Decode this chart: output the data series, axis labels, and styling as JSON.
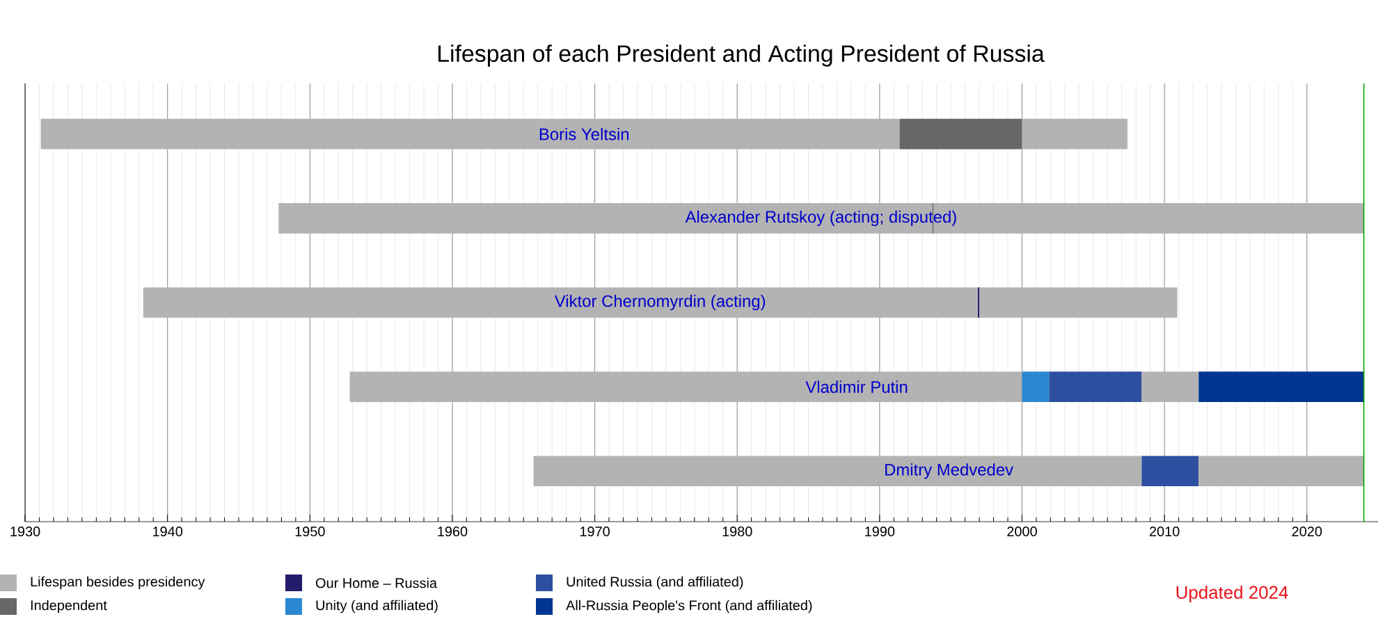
{
  "chart_data": {
    "type": "bar",
    "orientation": "horizontal",
    "title": "Lifespan of each President and Acting President of Russia",
    "categories": [
      "Boris Yeltsin",
      "Alexander Rutskoy (acting; disputed)",
      "Viktor Chernomyrdin (acting)",
      "Vladimir Putin",
      "Dmitry Medvedev"
    ],
    "series": [
      {
        "name": "Lifespan besides presidency",
        "color": "#b3b3b3",
        "base": [
          1931.1,
          1947.8,
          1938.3,
          1952.8,
          1965.7
        ],
        "values": [
          60.3,
          45.9,
          58.6,
          47.2,
          42.7
        ]
      },
      {
        "name": "Independent",
        "color": "#676767",
        "base": [
          1991.4,
          1993.7,
          null,
          null,
          null
        ],
        "values": [
          8.6,
          0.1,
          null,
          null,
          null
        ]
      },
      {
        "name": "Our Home – Russia",
        "color": "#231b6b",
        "base": [
          null,
          null,
          1996.9,
          null,
          null
        ],
        "values": [
          null,
          null,
          0.1,
          null,
          null
        ]
      },
      {
        "name": "Unity (and affiliated)",
        "color": "#2a88d3",
        "base": [
          null,
          null,
          null,
          2000.0,
          null
        ],
        "values": [
          null,
          null,
          null,
          1.9,
          null
        ]
      },
      {
        "name": "United Russia (and affiliated)",
        "color": "#2e4f9f",
        "base": [
          null,
          null,
          null,
          2001.9,
          2008.4
        ],
        "values": [
          null,
          null,
          null,
          6.5,
          4.0
        ]
      },
      {
        "color": "#b3b3b3",
        "base": [
          2000.0,
          1993.8,
          1997.0,
          2008.4,
          2012.4
        ],
        "values": [
          7.4,
          30.2,
          13.9,
          4.0,
          11.6
        ]
      },
      {
        "name": "All-Russia People's Front (and affiliated)",
        "color": "#003591",
        "base": [
          null,
          null,
          null,
          2012.4,
          null
        ],
        "values": [
          null,
          null,
          null,
          11.6,
          null
        ]
      }
    ],
    "xlim": [
      1930,
      2025
    ],
    "xticks": [
      1930,
      1940,
      1950,
      1960,
      1970,
      1980,
      1990,
      2000,
      2010,
      2020
    ],
    "grid": "x",
    "legend": "bottom",
    "ref_lines": [
      {
        "axis": "x",
        "value": 2024,
        "color": "#00a000"
      }
    ],
    "annotations": [
      "Updated 2024"
    ]
  }
}
